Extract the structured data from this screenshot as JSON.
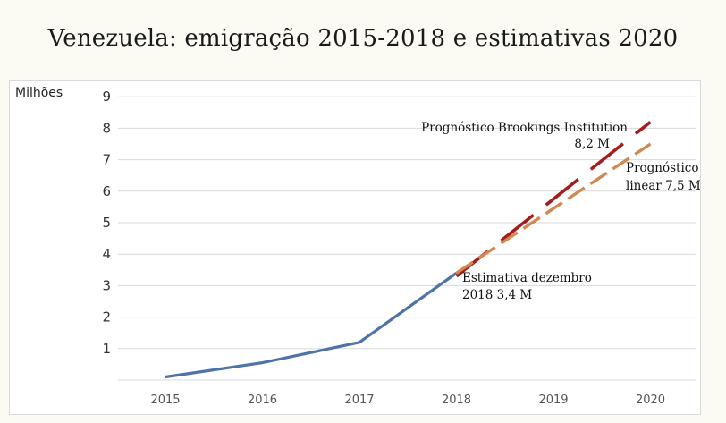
{
  "title": "Venezuela: emigração 2015-2018 e estimativas 2020",
  "chart_data": {
    "type": "line",
    "title": "Venezuela: emigração 2015-2018 e estimativas 2020",
    "ylabel": "Milhões",
    "xlabel": "",
    "categories": [
      "2015",
      "2016",
      "2017",
      "2018",
      "2019",
      "2020"
    ],
    "ylim": [
      0,
      9
    ],
    "yticks": [
      1,
      2,
      3,
      4,
      5,
      6,
      7,
      8,
      9
    ],
    "grid": true,
    "series": [
      {
        "key": "actual",
        "x": [
          "2015",
          "2016",
          "2017",
          "2018"
        ],
        "values": [
          0.1,
          0.55,
          1.2,
          3.4
        ],
        "color": "#4f73a8",
        "style": "solid"
      },
      {
        "key": "brookings",
        "x": [
          "2018",
          "2020"
        ],
        "values": [
          3.3,
          8.2
        ],
        "color": "#a51c1c",
        "style": "long-dash"
      },
      {
        "key": "linear",
        "x": [
          "2018",
          "2020"
        ],
        "values": [
          3.4,
          7.5
        ],
        "color": "#d18952",
        "style": "dash"
      }
    ],
    "annotations": [
      {
        "key": "brookings",
        "lines": [
          "Prognóstico Brookings Institution",
          "8,2 M"
        ]
      },
      {
        "key": "linear",
        "lines": [
          "Prognóstico",
          "linear 7,5 M"
        ]
      },
      {
        "key": "estimate",
        "lines": [
          "Estimativa dezembro",
          "2018 3,4 M"
        ]
      }
    ]
  }
}
